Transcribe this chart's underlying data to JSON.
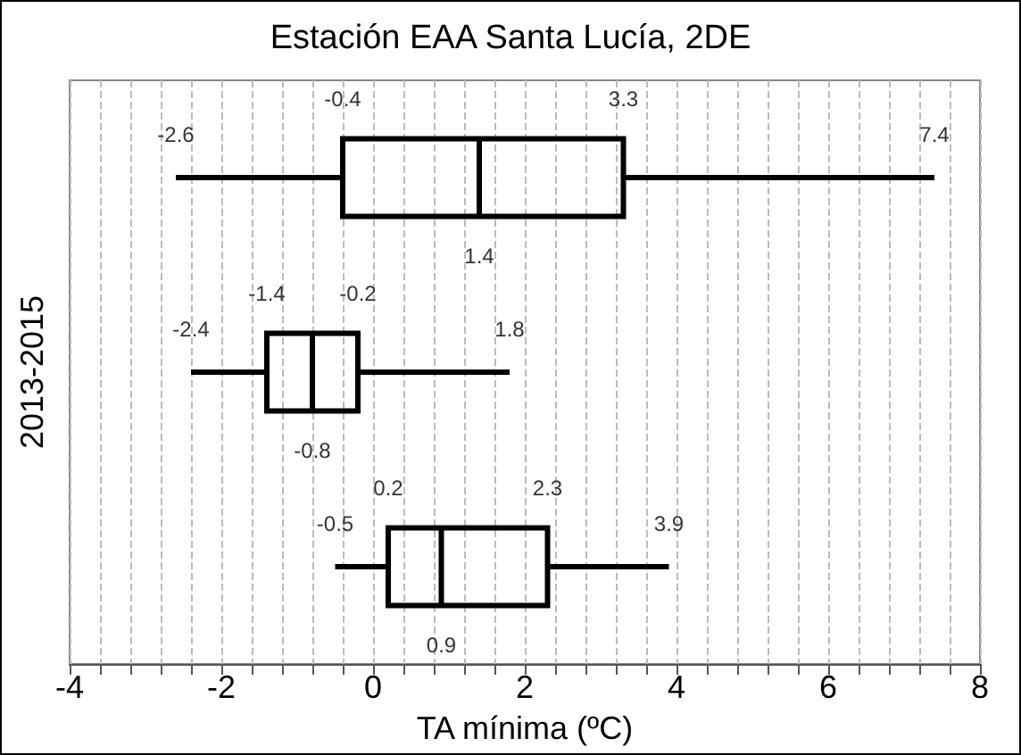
{
  "chart_data": {
    "type": "box",
    "title": "Estación EAA Santa Lucía, 2DE",
    "xlabel": "TA mínima (ºC)",
    "ylabel": "2013-2015",
    "orientation": "horizontal",
    "categories": [
      null,
      null,
      null
    ],
    "boxes": [
      {
        "low": -2.6,
        "q1": -0.4,
        "median": 1.4,
        "q3": 3.3,
        "high": 7.4
      },
      {
        "low": -2.4,
        "q1": -1.4,
        "median": -0.8,
        "q3": -0.2,
        "high": 1.8
      },
      {
        "low": -0.5,
        "q1": 0.2,
        "median": 0.9,
        "q3": 2.3,
        "high": 3.9
      }
    ],
    "color": "#000000",
    "grid": "x",
    "tick_labels": "x",
    "annotations": [
      "-2.6",
      "-0.4",
      "1.4",
      "3.3",
      "7.4",
      "-2.4",
      "-1.4",
      "-0.8",
      "-0.2",
      "1.8",
      "-0.5",
      "0.2",
      "0.9",
      "2.3",
      "3.9"
    ],
    "xlim": [
      -4,
      8
    ],
    "xticks": [
      -4,
      {
        "value": -3.6,
        "label": null
      },
      {
        "value": -3.2,
        "label": null
      },
      {
        "value": -2.8,
        "label": null
      },
      {
        "value": -2.4,
        "label": null
      },
      -2,
      {
        "value": -1.6,
        "label": null
      },
      {
        "value": -1.2,
        "label": null
      },
      {
        "value": -0.8,
        "label": null
      },
      {
        "value": -0.4,
        "label": null
      },
      0,
      {
        "value": 0.4,
        "label": null
      },
      {
        "value": 0.8,
        "label": null
      },
      {
        "value": 1.2,
        "label": null
      },
      {
        "value": 1.6,
        "label": null
      },
      2,
      {
        "value": 2.4,
        "label": null
      },
      {
        "value": 2.8,
        "label": null
      },
      {
        "value": 3.2,
        "label": null
      },
      {
        "value": 3.6,
        "label": null
      },
      4,
      {
        "value": 4.4,
        "label": null
      },
      {
        "value": 4.8,
        "label": null
      },
      {
        "value": 5.2,
        "label": null
      },
      {
        "value": 5.6,
        "label": null
      },
      6,
      {
        "value": 6.4,
        "label": null
      },
      {
        "value": 6.8,
        "label": null
      },
      {
        "value": 7.2,
        "label": null
      },
      {
        "value": 7.6,
        "label": null
      },
      8
    ]
  }
}
